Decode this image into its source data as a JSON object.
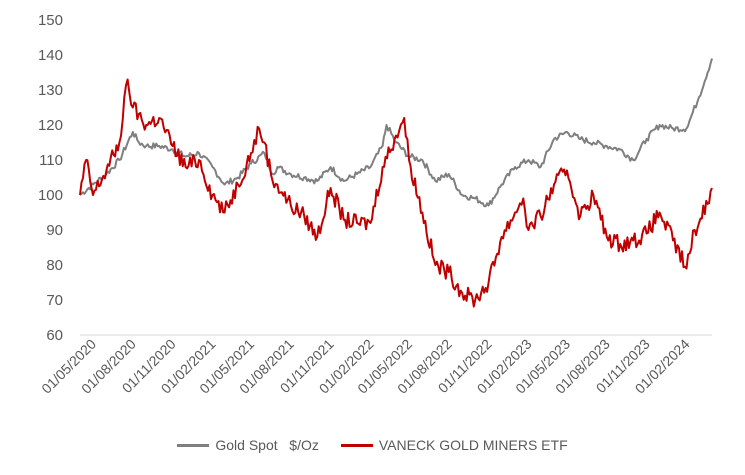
{
  "chart_data": {
    "type": "line",
    "title": "",
    "xlabel": "",
    "ylabel": "",
    "ylim": [
      60,
      150
    ],
    "y_ticks": [
      "60",
      "70",
      "80",
      "90",
      "100",
      "110",
      "120",
      "130",
      "140",
      "150"
    ],
    "x_ticks": [
      "01/05/2020",
      "01/08/2020",
      "01/11/2020",
      "01/02/2021",
      "01/05/2021",
      "01/08/2021",
      "01/11/2021",
      "01/02/2022",
      "01/05/2022",
      "01/08/2022",
      "01/11/2022",
      "01/02/2023",
      "01/05/2023",
      "01/08/2023",
      "01/11/2023",
      "01/02/2024"
    ],
    "x_range": [
      "2020-04-01",
      "2024-03-31"
    ],
    "grid": false,
    "legend": "bottom-center",
    "series": [
      {
        "name": "Gold Spot   $/Oz",
        "color": "#7f7f7f",
        "points": [
          [
            "2020-04-01",
            100
          ],
          [
            "2020-05-01",
            103
          ],
          [
            "2020-06-01",
            106
          ],
          [
            "2020-07-01",
            110
          ],
          [
            "2020-08-01",
            118
          ],
          [
            "2020-08-15",
            115
          ],
          [
            "2020-09-01",
            114
          ],
          [
            "2020-10-01",
            114
          ],
          [
            "2020-11-01",
            113
          ],
          [
            "2020-12-01",
            111
          ],
          [
            "2021-01-01",
            112
          ],
          [
            "2021-02-01",
            108
          ],
          [
            "2021-03-01",
            103
          ],
          [
            "2021-04-01",
            105
          ],
          [
            "2021-05-01",
            109
          ],
          [
            "2021-06-01",
            112
          ],
          [
            "2021-06-20",
            106
          ],
          [
            "2021-07-01",
            108
          ],
          [
            "2021-08-01",
            106
          ],
          [
            "2021-09-01",
            105
          ],
          [
            "2021-10-01",
            104
          ],
          [
            "2021-11-01",
            108
          ],
          [
            "2021-12-01",
            104
          ],
          [
            "2022-01-01",
            106
          ],
          [
            "2022-02-01",
            108
          ],
          [
            "2022-03-01",
            114
          ],
          [
            "2022-03-10",
            120
          ],
          [
            "2022-04-01",
            115
          ],
          [
            "2022-05-01",
            111
          ],
          [
            "2022-06-01",
            110
          ],
          [
            "2022-07-01",
            104
          ],
          [
            "2022-08-01",
            106
          ],
          [
            "2022-09-01",
            100
          ],
          [
            "2022-10-01",
            99
          ],
          [
            "2022-11-01",
            97
          ],
          [
            "2022-12-01",
            103
          ],
          [
            "2023-01-01",
            108
          ],
          [
            "2023-02-01",
            110
          ],
          [
            "2023-03-01",
            108
          ],
          [
            "2023-04-01",
            116
          ],
          [
            "2023-05-01",
            118
          ],
          [
            "2023-06-01",
            116
          ],
          [
            "2023-07-01",
            115
          ],
          [
            "2023-08-01",
            114
          ],
          [
            "2023-09-01",
            113
          ],
          [
            "2023-10-01",
            110
          ],
          [
            "2023-11-01",
            116
          ],
          [
            "2023-12-01",
            120
          ],
          [
            "2024-01-01",
            119
          ],
          [
            "2024-02-01",
            119
          ],
          [
            "2024-03-01",
            128
          ],
          [
            "2024-03-31",
            139
          ]
        ]
      },
      {
        "name": "VANECK GOLD MINERS ETF",
        "color": "#c00000",
        "points": [
          [
            "2020-04-01",
            100
          ],
          [
            "2020-04-15",
            110
          ],
          [
            "2020-05-01",
            100
          ],
          [
            "2020-06-01",
            107
          ],
          [
            "2020-07-01",
            115
          ],
          [
            "2020-07-20",
            133
          ],
          [
            "2020-08-01",
            125
          ],
          [
            "2020-09-01",
            120
          ],
          [
            "2020-10-01",
            122
          ],
          [
            "2020-11-01",
            114
          ],
          [
            "2020-12-01",
            108
          ],
          [
            "2021-01-01",
            110
          ],
          [
            "2021-02-01",
            100
          ],
          [
            "2021-03-01",
            95
          ],
          [
            "2021-04-01",
            103
          ],
          [
            "2021-05-01",
            112
          ],
          [
            "2021-05-20",
            119
          ],
          [
            "2021-06-01",
            115
          ],
          [
            "2021-06-20",
            104
          ],
          [
            "2021-07-01",
            103
          ],
          [
            "2021-08-01",
            97
          ],
          [
            "2021-09-01",
            94
          ],
          [
            "2021-10-01",
            88
          ],
          [
            "2021-11-01",
            102
          ],
          [
            "2021-12-01",
            93
          ],
          [
            "2022-01-01",
            92
          ],
          [
            "2022-02-01",
            92
          ],
          [
            "2022-03-01",
            108
          ],
          [
            "2022-04-01",
            117
          ],
          [
            "2022-04-20",
            122
          ],
          [
            "2022-05-01",
            110
          ],
          [
            "2022-06-01",
            95
          ],
          [
            "2022-07-01",
            80
          ],
          [
            "2022-08-01",
            78
          ],
          [
            "2022-09-01",
            72
          ],
          [
            "2022-10-01",
            70
          ],
          [
            "2022-11-01",
            75
          ],
          [
            "2022-12-01",
            88
          ],
          [
            "2023-01-01",
            95
          ],
          [
            "2023-01-20",
            99
          ],
          [
            "2023-02-01",
            90
          ],
          [
            "2023-03-01",
            94
          ],
          [
            "2023-04-01",
            103
          ],
          [
            "2023-05-01",
            107
          ],
          [
            "2023-06-01",
            94
          ],
          [
            "2023-07-01",
            100
          ],
          [
            "2023-08-01",
            88
          ],
          [
            "2023-09-01",
            86
          ],
          [
            "2023-10-01",
            87
          ],
          [
            "2023-11-01",
            89
          ],
          [
            "2023-12-01",
            95
          ],
          [
            "2024-01-01",
            87
          ],
          [
            "2024-02-01",
            79
          ],
          [
            "2024-02-20",
            90
          ],
          [
            "2024-03-01",
            92
          ],
          [
            "2024-03-31",
            102
          ]
        ]
      }
    ]
  }
}
